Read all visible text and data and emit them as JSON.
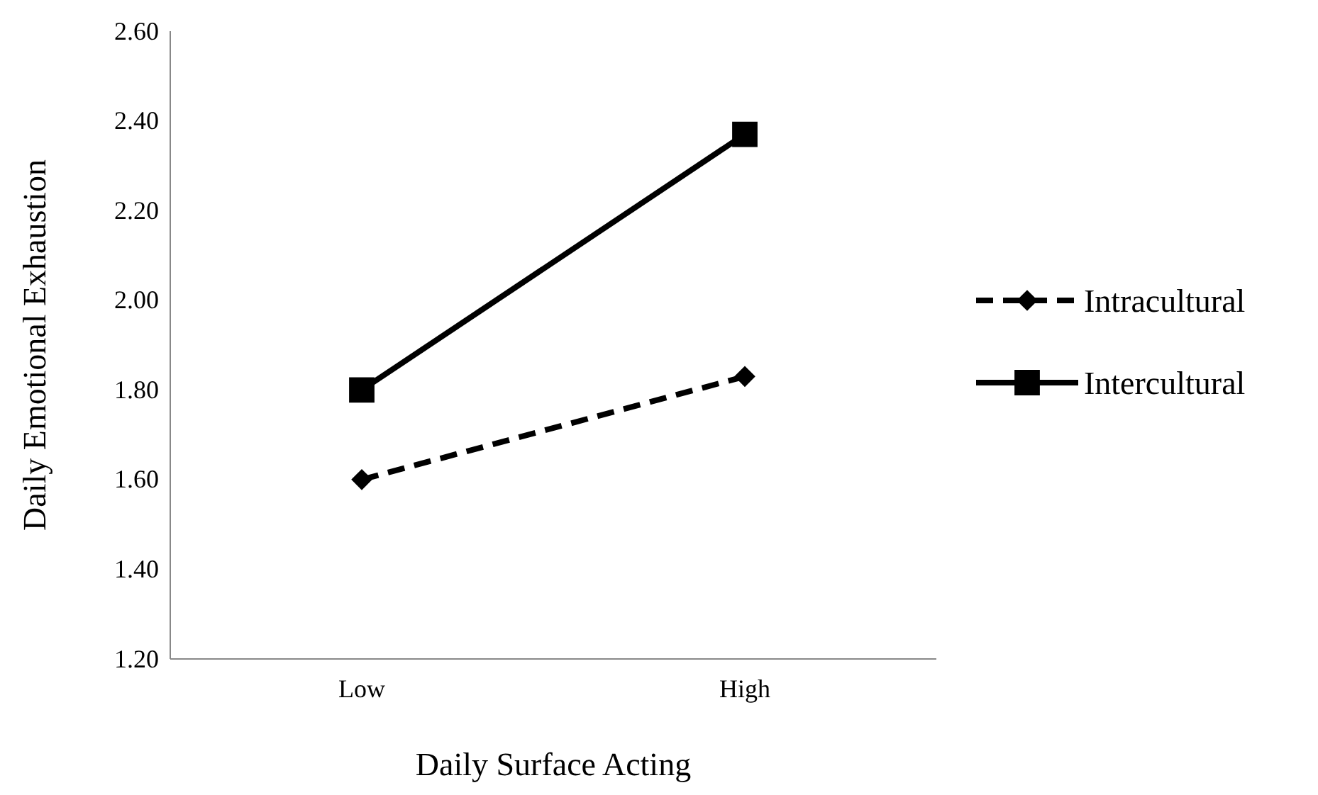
{
  "chart_data": {
    "type": "line",
    "xlabel": "Daily Surface Acting",
    "ylabel": "Daily Emotional Exhaustion",
    "categories": [
      "Low",
      "High"
    ],
    "series": [
      {
        "name": "Intracultural",
        "color": "#000000",
        "values": [
          1.6,
          1.83
        ],
        "marker": "diamond",
        "line_style": "dashed"
      },
      {
        "name": "Intercultural",
        "color": "#000000",
        "values": [
          1.8,
          2.37
        ],
        "marker": "square",
        "line_style": "solid"
      }
    ],
    "ylim": [
      1.2,
      2.6
    ],
    "yticks": [
      {
        "value": 1.2,
        "label": "1.20"
      },
      {
        "value": 1.4,
        "label": "1.40"
      },
      {
        "value": 1.6,
        "label": "1.60"
      },
      {
        "value": 1.8,
        "label": "1.80"
      },
      {
        "value": 2.0,
        "label": "2.00"
      },
      {
        "value": 2.2,
        "label": "2.20"
      },
      {
        "value": 2.4,
        "label": "2.40"
      },
      {
        "value": 2.6,
        "label": "2.60"
      }
    ],
    "grid": false,
    "legend": "right"
  }
}
